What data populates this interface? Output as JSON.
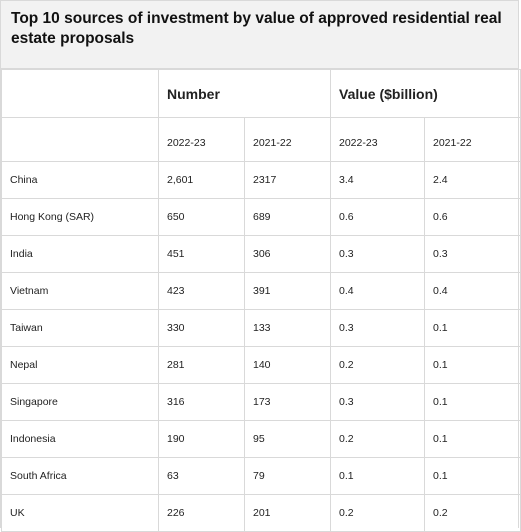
{
  "title": "Top 10 sources of investment by value of approved residential real estate proposals",
  "table": {
    "group_headers": [
      "",
      "Number",
      "Value ($billion)"
    ],
    "sub_headers": [
      "",
      "2022-23",
      "2021-22",
      "2022-23",
      "2021-22"
    ],
    "rows": [
      [
        "China",
        "2,601",
        "2317",
        "3.4",
        "2.4"
      ],
      [
        "Hong Kong (SAR)",
        "650",
        "689",
        "0.6",
        "0.6"
      ],
      [
        "India",
        "451",
        "306",
        "0.3",
        "0.3"
      ],
      [
        "Vietnam",
        "423",
        "391",
        "0.4",
        "0.4"
      ],
      [
        "Taiwan",
        "330",
        "133",
        "0.3",
        "0.1"
      ],
      [
        "Nepal",
        "281",
        "140",
        "0.2",
        "0.1"
      ],
      [
        "Singapore",
        "316",
        "173",
        "0.3",
        "0.1"
      ],
      [
        "Indonesia",
        "190",
        "95",
        "0.2",
        "0.1"
      ],
      [
        "South Africa",
        "63",
        "79",
        "0.1",
        "0.1"
      ],
      [
        "UK",
        "226",
        "201",
        "0.2",
        "0.2"
      ]
    ]
  }
}
